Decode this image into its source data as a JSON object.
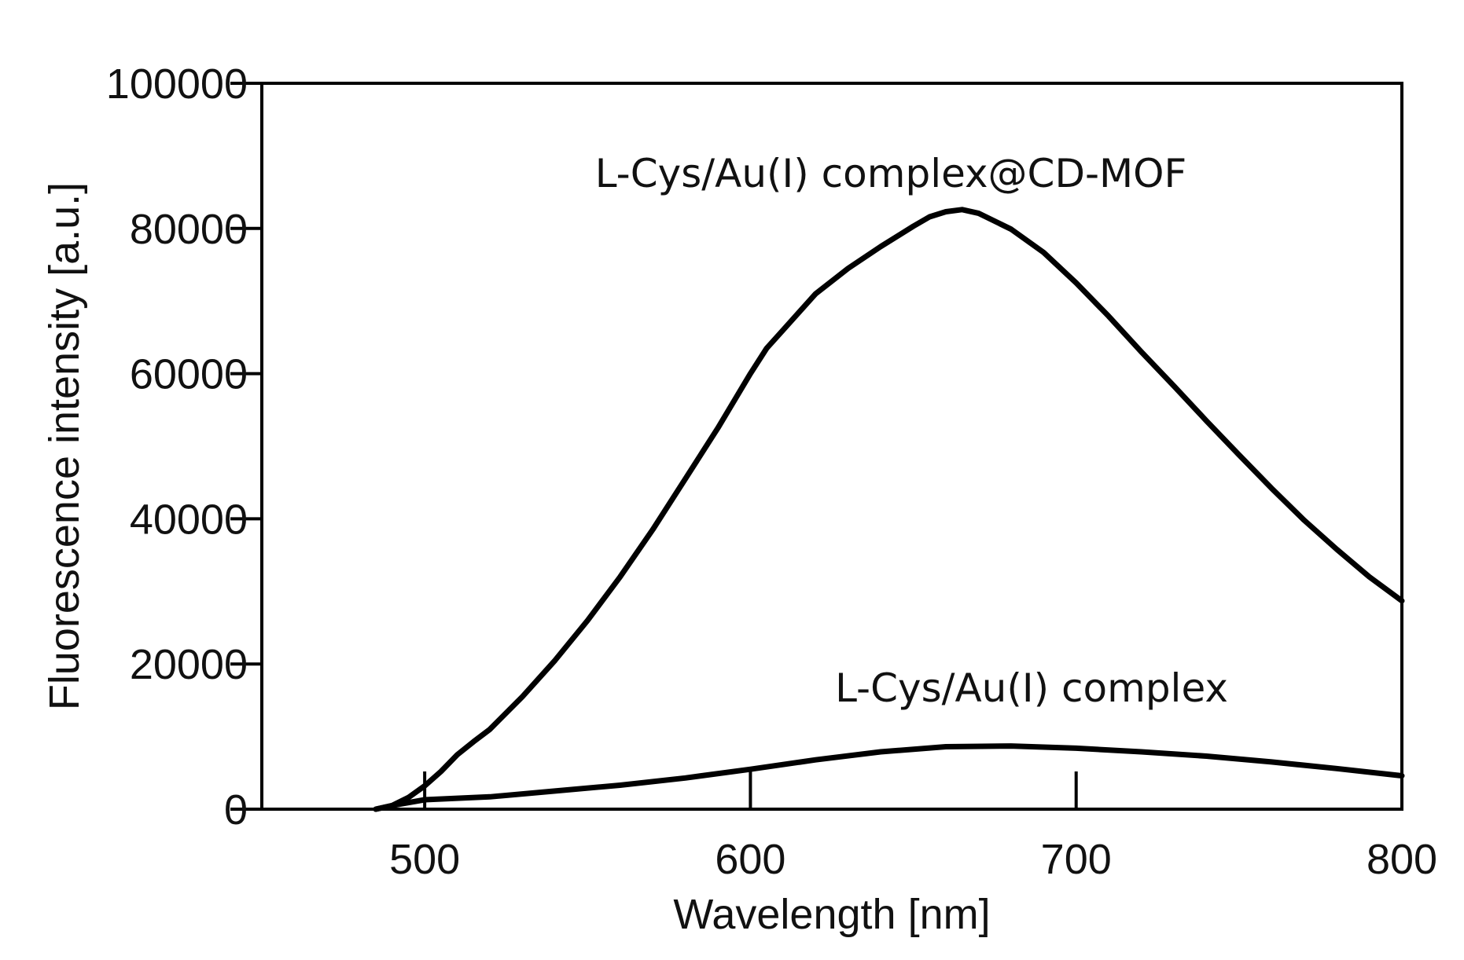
{
  "chart_data": {
    "type": "line",
    "xlabel": "Wavelength [nm]",
    "ylabel": "Fluorescence intensity [a.u.]",
    "xlim": [
      450,
      800
    ],
    "ylim": [
      0,
      100000
    ],
    "xticks": [
      500,
      600,
      700,
      800
    ],
    "yticks": [
      0,
      20000,
      40000,
      60000,
      80000,
      100000
    ],
    "xtick_labels": [
      "500",
      "600",
      "700",
      "800"
    ],
    "ytick_labels": [
      "0",
      "20000",
      "40000",
      "60000",
      "80000",
      "100000"
    ],
    "grid": false,
    "legend": "none",
    "series": [
      {
        "name": "L-Cys/Au(I) complex@CD-MOF",
        "x": [
          485,
          490,
          495,
          500,
          505,
          510,
          515,
          520,
          530,
          540,
          550,
          560,
          570,
          580,
          590,
          600,
          605,
          610,
          620,
          630,
          640,
          650,
          655,
          660,
          665,
          670,
          680,
          690,
          700,
          710,
          720,
          730,
          740,
          750,
          760,
          770,
          780,
          790,
          800
        ],
        "y": [
          0,
          500,
          1600,
          3200,
          5200,
          7500,
          9300,
          11000,
          15500,
          20500,
          26000,
          32000,
          38500,
          45500,
          52500,
          60000,
          63500,
          66000,
          71000,
          74500,
          77500,
          80300,
          81600,
          82300,
          82600,
          82100,
          79900,
          76700,
          72500,
          67900,
          63000,
          58300,
          53500,
          48800,
          44200,
          39800,
          35800,
          32000,
          28700
        ]
      },
      {
        "name": "L-Cys/Au(I) complex",
        "x": [
          485,
          490,
          500,
          520,
          540,
          560,
          580,
          600,
          620,
          640,
          660,
          680,
          700,
          720,
          740,
          760,
          780,
          800
        ],
        "y": [
          0,
          500,
          1300,
          1700,
          2500,
          3300,
          4300,
          5500,
          6800,
          7900,
          8600,
          8700,
          8400,
          7900,
          7300,
          6500,
          5600,
          4600
        ]
      }
    ],
    "annotations": [
      {
        "text": "L-Cys/Au(I) complex@CD-MOF"
      },
      {
        "text": "L-Cys/Au(I) complex"
      }
    ],
    "colors": {
      "line": "#000000",
      "background": "#ffffff"
    }
  }
}
